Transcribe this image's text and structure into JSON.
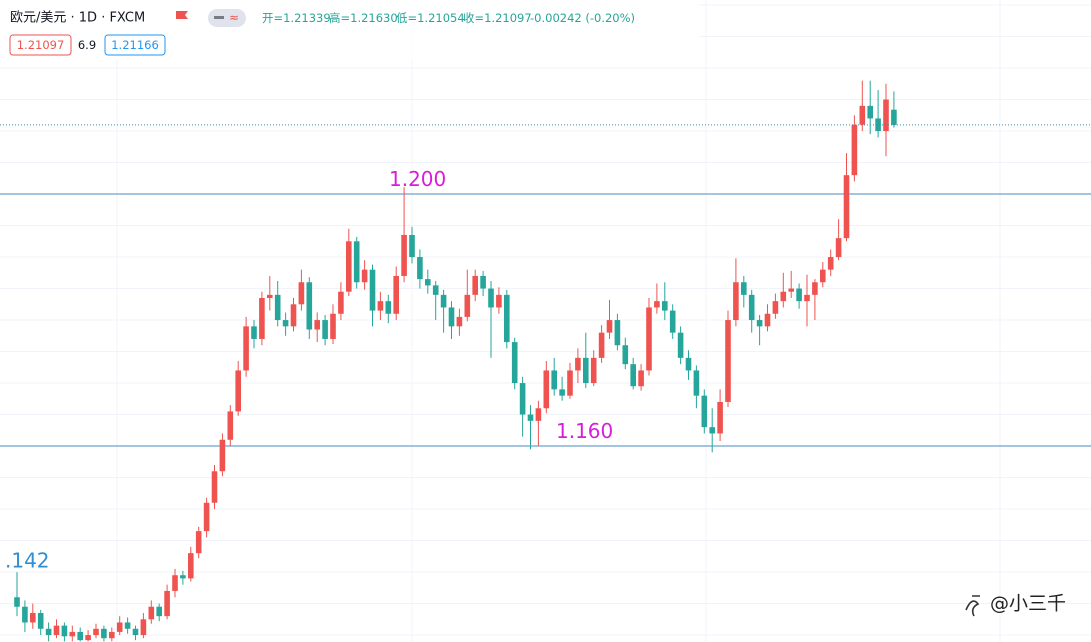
{
  "chart_data": {
    "type": "candlestick",
    "symbol": "欧元/美元 · 1D · FXCM",
    "ohlc_header": [
      "开=1.21339",
      "高=1.21630",
      "低=1.21054",
      "收=1.21097",
      "-0.00242 (-0.20%)"
    ],
    "badges": [
      "1.21097",
      "6.9",
      "1.21166"
    ],
    "watermark": "@小三千",
    "ylim": [
      1.1289,
      1.2308
    ],
    "up_color": "#ef5350",
    "down_color": "#26a69a",
    "levels": [
      {
        "value": 1.2,
        "label": "1.200"
      },
      {
        "value": 1.16,
        "label": "1.160"
      }
    ],
    "annotations": [
      {
        "value": 1.142,
        "label": ".142"
      }
    ],
    "candles": [
      [
        1.136,
        1.14,
        1.133,
        1.1345
      ],
      [
        1.1345,
        1.1355,
        1.1305,
        1.132
      ],
      [
        1.132,
        1.135,
        1.131,
        1.1335
      ],
      [
        1.1335,
        1.134,
        1.13,
        1.131
      ],
      [
        1.131,
        1.132,
        1.129,
        1.13
      ],
      [
        1.13,
        1.1325,
        1.1295,
        1.1315
      ],
      [
        1.1315,
        1.132,
        1.129,
        1.1298
      ],
      [
        1.1298,
        1.1315,
        1.129,
        1.1305
      ],
      [
        1.1305,
        1.1312,
        1.129,
        1.1292
      ],
      [
        1.1292,
        1.1308,
        1.129,
        1.13
      ],
      [
        1.13,
        1.1318,
        1.1295,
        1.131
      ],
      [
        1.131,
        1.1315,
        1.129,
        1.1295
      ],
      [
        1.1295,
        1.1312,
        1.129,
        1.1305
      ],
      [
        1.1305,
        1.133,
        1.13,
        1.132
      ],
      [
        1.132,
        1.1328,
        1.1302,
        1.131
      ],
      [
        1.131,
        1.1315,
        1.1292,
        1.13
      ],
      [
        1.13,
        1.1335,
        1.1295,
        1.1325
      ],
      [
        1.1325,
        1.1355,
        1.1318,
        1.1345
      ],
      [
        1.1345,
        1.135,
        1.1322,
        1.133
      ],
      [
        1.133,
        1.138,
        1.1325,
        1.137
      ],
      [
        1.137,
        1.1405,
        1.136,
        1.1395
      ],
      [
        1.1395,
        1.1402,
        1.138,
        1.139
      ],
      [
        1.139,
        1.144,
        1.1385,
        1.143
      ],
      [
        1.143,
        1.1472,
        1.1422,
        1.1465
      ],
      [
        1.1465,
        1.1518,
        1.1455,
        1.151
      ],
      [
        1.151,
        1.157,
        1.15,
        1.156
      ],
      [
        1.156,
        1.162,
        1.1552,
        1.161
      ],
      [
        1.161,
        1.1665,
        1.16,
        1.1655
      ],
      [
        1.1655,
        1.1735,
        1.1648,
        1.172
      ],
      [
        1.172,
        1.1805,
        1.171,
        1.179
      ],
      [
        1.179,
        1.18,
        1.1755,
        1.177
      ],
      [
        1.177,
        1.1845,
        1.176,
        1.1835
      ],
      [
        1.1835,
        1.187,
        1.1815,
        1.184
      ],
      [
        1.184,
        1.1862,
        1.179,
        1.18
      ],
      [
        1.18,
        1.1812,
        1.1775,
        1.179
      ],
      [
        1.179,
        1.1835,
        1.1782,
        1.1825
      ],
      [
        1.1825,
        1.188,
        1.1815,
        1.186
      ],
      [
        1.186,
        1.1868,
        1.177,
        1.1785
      ],
      [
        1.1785,
        1.1812,
        1.1765,
        1.18
      ],
      [
        1.18,
        1.1808,
        1.176,
        1.177
      ],
      [
        1.177,
        1.1825,
        1.1762,
        1.181
      ],
      [
        1.181,
        1.186,
        1.18,
        1.1845
      ],
      [
        1.1845,
        1.1945,
        1.1838,
        1.1925
      ],
      [
        1.1925,
        1.1932,
        1.185,
        1.186
      ],
      [
        1.186,
        1.1895,
        1.1848,
        1.188
      ],
      [
        1.188,
        1.1888,
        1.179,
        1.1815
      ],
      [
        1.1815,
        1.1845,
        1.18,
        1.183
      ],
      [
        1.183,
        1.184,
        1.1795,
        1.181
      ],
      [
        1.181,
        1.1885,
        1.18,
        1.187
      ],
      [
        1.187,
        1.2011,
        1.186,
        1.1935
      ],
      [
        1.1935,
        1.1948,
        1.189,
        1.19
      ],
      [
        1.19,
        1.1912,
        1.185,
        1.1865
      ],
      [
        1.1865,
        1.188,
        1.1842,
        1.1855
      ],
      [
        1.1855,
        1.1862,
        1.18,
        1.184
      ],
      [
        1.184,
        1.1848,
        1.178,
        1.182
      ],
      [
        1.182,
        1.183,
        1.177,
        1.179
      ],
      [
        1.179,
        1.1818,
        1.1775,
        1.1805
      ],
      [
        1.1805,
        1.188,
        1.1798,
        1.184
      ],
      [
        1.184,
        1.188,
        1.183,
        1.187
      ],
      [
        1.187,
        1.1878,
        1.1838,
        1.185
      ],
      [
        1.185,
        1.1862,
        1.174,
        1.182
      ],
      [
        1.182,
        1.1852,
        1.181,
        1.184
      ],
      [
        1.184,
        1.1848,
        1.1755,
        1.1765
      ],
      [
        1.1765,
        1.1772,
        1.169,
        1.17
      ],
      [
        1.17,
        1.171,
        1.1615,
        1.165
      ],
      [
        1.165,
        1.1665,
        1.1595,
        1.164
      ],
      [
        1.164,
        1.1672,
        1.16,
        1.166
      ],
      [
        1.166,
        1.1735,
        1.1652,
        1.172
      ],
      [
        1.172,
        1.174,
        1.168,
        1.169
      ],
      [
        1.169,
        1.171,
        1.1672,
        1.168
      ],
      [
        1.168,
        1.1732,
        1.1675,
        1.172
      ],
      [
        1.172,
        1.1755,
        1.17,
        1.174
      ],
      [
        1.174,
        1.178,
        1.1692,
        1.17
      ],
      [
        1.17,
        1.1752,
        1.1695,
        1.174
      ],
      [
        1.174,
        1.1792,
        1.1732,
        1.178
      ],
      [
        1.178,
        1.1832,
        1.177,
        1.18
      ],
      [
        1.18,
        1.181,
        1.1752,
        1.176
      ],
      [
        1.176,
        1.1772,
        1.1722,
        1.173
      ],
      [
        1.173,
        1.174,
        1.169,
        1.1695
      ],
      [
        1.1695,
        1.173,
        1.1688,
        1.172
      ],
      [
        1.172,
        1.1835,
        1.1712,
        1.182
      ],
      [
        1.182,
        1.1858,
        1.181,
        1.183
      ],
      [
        1.183,
        1.186,
        1.18,
        1.1815
      ],
      [
        1.1815,
        1.1825,
        1.177,
        1.178
      ],
      [
        1.178,
        1.179,
        1.173,
        1.174
      ],
      [
        1.174,
        1.1752,
        1.1705,
        1.172
      ],
      [
        1.172,
        1.1728,
        1.166,
        1.168
      ],
      [
        1.168,
        1.169,
        1.162,
        1.163
      ],
      [
        1.163,
        1.166,
        1.159,
        1.162
      ],
      [
        1.162,
        1.169,
        1.1608,
        1.167
      ],
      [
        1.167,
        1.1815,
        1.1662,
        1.18
      ],
      [
        1.18,
        1.1898,
        1.179,
        1.186
      ],
      [
        1.186,
        1.187,
        1.182,
        1.184
      ],
      [
        1.184,
        1.1848,
        1.178,
        1.18
      ],
      [
        1.18,
        1.1808,
        1.176,
        1.179
      ],
      [
        1.179,
        1.1825,
        1.1782,
        1.181
      ],
      [
        1.181,
        1.1842,
        1.1802,
        1.183
      ],
      [
        1.183,
        1.1875,
        1.182,
        1.1845
      ],
      [
        1.1845,
        1.1878,
        1.1835,
        1.185
      ],
      [
        1.185,
        1.1858,
        1.1818,
        1.183
      ],
      [
        1.183,
        1.1872,
        1.179,
        1.184
      ],
      [
        1.184,
        1.1865,
        1.18,
        1.186
      ],
      [
        1.186,
        1.1892,
        1.1852,
        1.188
      ],
      [
        1.188,
        1.1912,
        1.187,
        1.19
      ],
      [
        1.19,
        1.196,
        1.1895,
        1.193
      ],
      [
        1.193,
        1.2065,
        1.1925,
        1.203
      ],
      [
        1.203,
        1.2125,
        1.202,
        1.211
      ],
      [
        1.211,
        1.218,
        1.21,
        1.214
      ],
      [
        1.214,
        1.218,
        1.2095,
        1.212
      ],
      [
        1.212,
        1.2165,
        1.209,
        1.21
      ],
      [
        1.21,
        1.2175,
        1.206,
        1.215
      ],
      [
        1.21339,
        1.2163,
        1.21054,
        1.21097
      ]
    ]
  }
}
